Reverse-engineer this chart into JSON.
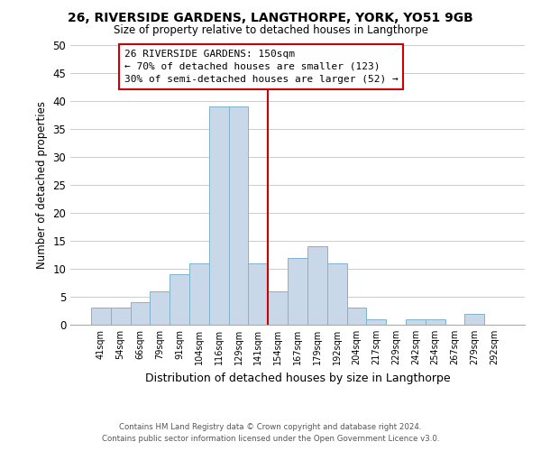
{
  "title": "26, RIVERSIDE GARDENS, LANGTHORPE, YORK, YO51 9GB",
  "subtitle": "Size of property relative to detached houses in Langthorpe",
  "xlabel": "Distribution of detached houses by size in Langthorpe",
  "ylabel": "Number of detached properties",
  "bar_color": "#c8d8e8",
  "bar_edge_color": "#7fb3cc",
  "vline_color": "#cc0000",
  "annotation_title": "26 RIVERSIDE GARDENS: 150sqm",
  "annotation_line1": "← 70% of detached houses are smaller (123)",
  "annotation_line2": "30% of semi-detached houses are larger (52) →",
  "annotation_box_color": "#ffffff",
  "annotation_box_edge": "#cc0000",
  "categories": [
    "41sqm",
    "54sqm",
    "66sqm",
    "79sqm",
    "91sqm",
    "104sqm",
    "116sqm",
    "129sqm",
    "141sqm",
    "154sqm",
    "167sqm",
    "179sqm",
    "192sqm",
    "204sqm",
    "217sqm",
    "229sqm",
    "242sqm",
    "254sqm",
    "267sqm",
    "279sqm",
    "292sqm"
  ],
  "values": [
    3,
    3,
    4,
    6,
    9,
    11,
    39,
    39,
    11,
    6,
    12,
    14,
    11,
    3,
    1,
    0,
    1,
    1,
    0,
    2,
    0
  ],
  "ylim": [
    0,
    50
  ],
  "yticks": [
    0,
    5,
    10,
    15,
    20,
    25,
    30,
    35,
    40,
    45,
    50
  ],
  "footnote1": "Contains HM Land Registry data © Crown copyright and database right 2024.",
  "footnote2": "Contains public sector information licensed under the Open Government Licence v3.0.",
  "bg_color": "#ffffff",
  "grid_color": "#cccccc",
  "vline_bar_index": 8.5
}
